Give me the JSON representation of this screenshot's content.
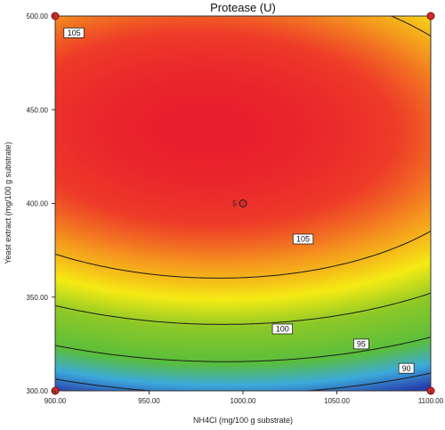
{
  "chart_data": {
    "type": "heatmap",
    "title": "Protease (U)",
    "xlabel": "NH4Cl (mg/100 g substrate)",
    "ylabel": "Yeast extract (mg/100 g substrate)",
    "xlim": [
      900,
      1100
    ],
    "ylim": [
      300,
      500
    ],
    "x_ticks": [
      900,
      950,
      1000,
      1050,
      1100
    ],
    "y_ticks": [
      300,
      350,
      400,
      450,
      500
    ],
    "x_tick_labels": [
      "900.00",
      "950.00",
      "1000.00",
      "1050.00",
      "1100.00"
    ],
    "y_tick_labels": [
      "300.00",
      "350.00",
      "400.00",
      "450.00",
      "500.00"
    ],
    "surface": {
      "optimum": {
        "x": 980,
        "y": 440,
        "z": 112
      },
      "a": 0.00028,
      "b": 0.0011,
      "c": 5e-05,
      "color_range": [
        88,
        112
      ]
    },
    "contours": [
      {
        "level": 105,
        "labels": [
          {
            "text": "105",
            "x": 910,
            "y": 491
          },
          {
            "text": "105",
            "x": 1032,
            "y": 381
          }
        ]
      },
      {
        "level": 100,
        "labels": [
          {
            "text": "100",
            "x": 1021,
            "y": 333
          }
        ]
      },
      {
        "level": 95,
        "labels": [
          {
            "text": "95",
            "x": 1063,
            "y": 325
          }
        ]
      },
      {
        "level": 90,
        "labels": [
          {
            "text": "90",
            "x": 1087,
            "y": 312
          }
        ]
      }
    ],
    "design_points": [
      {
        "x": 900,
        "y": 300
      },
      {
        "x": 1100,
        "y": 300
      },
      {
        "x": 900,
        "y": 500
      },
      {
        "x": 1100,
        "y": 500
      }
    ],
    "center_point": {
      "x": 1000,
      "y": 400,
      "label": "5"
    }
  }
}
